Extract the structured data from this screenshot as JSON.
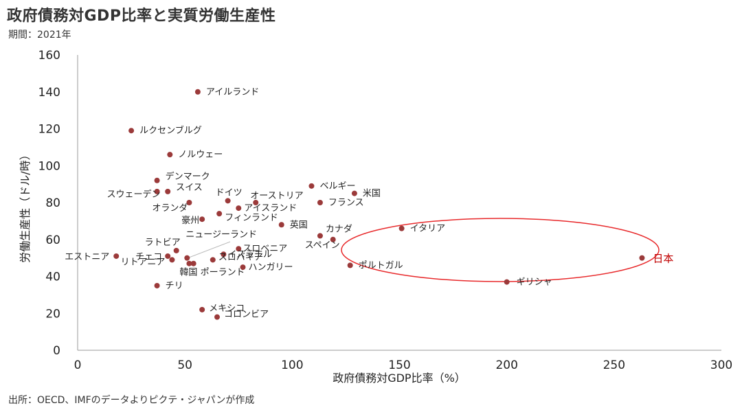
{
  "title": "政府債務対GDP比率と実質労働生産性",
  "subtitle": "期間：2021年",
  "source": "出所：OECD、IMFのデータよりピクテ・ジャパンが作成",
  "chart_data": {
    "type": "scatter",
    "xlabel": "政府債務対GDP比率（%）",
    "ylabel": "労働生産性（ドル/時）",
    "xlim": [
      0,
      300
    ],
    "ylim": [
      0,
      160
    ],
    "xticks": [
      0,
      50,
      100,
      150,
      200,
      250,
      300
    ],
    "yticks": [
      0,
      20,
      40,
      60,
      80,
      100,
      120,
      140,
      160
    ],
    "grid": false,
    "point_color": "#9b3a3a",
    "highlight_color": "#e8292b",
    "points": [
      {
        "label": "アイルランド",
        "x": 56,
        "y": 140
      },
      {
        "label": "ルクセンブルグ",
        "x": 25,
        "y": 119
      },
      {
        "label": "ノルウェー",
        "x": 43,
        "y": 106
      },
      {
        "label": "デンマーク",
        "x": 37,
        "y": 92
      },
      {
        "label": "スウェーデン",
        "x": 37,
        "y": 86
      },
      {
        "label": "スイス",
        "x": 42,
        "y": 86
      },
      {
        "label": "オランダ",
        "x": 52,
        "y": 80
      },
      {
        "label": "ドイツ",
        "x": 70,
        "y": 81
      },
      {
        "label": "オーストリア",
        "x": 83,
        "y": 80
      },
      {
        "label": "アイスランド",
        "x": 75,
        "y": 77
      },
      {
        "label": "フィンランド",
        "x": 66,
        "y": 74
      },
      {
        "label": "豪州",
        "x": 58,
        "y": 71
      },
      {
        "label": "ベルギー",
        "x": 109,
        "y": 89
      },
      {
        "label": "米国",
        "x": 129,
        "y": 85
      },
      {
        "label": "フランス",
        "x": 113,
        "y": 80
      },
      {
        "label": "英国",
        "x": 95,
        "y": 68
      },
      {
        "label": "カナダ",
        "x": 113,
        "y": 62
      },
      {
        "label": "スペイン",
        "x": 119,
        "y": 60
      },
      {
        "label": "イタリア",
        "x": 151,
        "y": 66
      },
      {
        "label": "ニュージーランド",
        "x": 51,
        "y": 50
      },
      {
        "label": "ラトビア",
        "x": 46,
        "y": 54
      },
      {
        "label": "チェコ",
        "x": 42,
        "y": 51
      },
      {
        "label": "エストニア",
        "x": 18,
        "y": 51
      },
      {
        "label": "リトアニア",
        "x": 44,
        "y": 49
      },
      {
        "label": "韓国",
        "x": 52,
        "y": 47
      },
      {
        "label": "ポーランド",
        "x": 54,
        "y": 47
      },
      {
        "label": "スロベニア",
        "x": 75,
        "y": 55
      },
      {
        "label": "イスラエル",
        "x": 68,
        "y": 52
      },
      {
        "label": "スロバキア",
        "x": 63,
        "y": 49
      },
      {
        "label": "ハンガリー",
        "x": 77,
        "y": 45
      },
      {
        "label": "ポルトガル",
        "x": 127,
        "y": 46
      },
      {
        "label": "ギリシャ",
        "x": 200,
        "y": 37
      },
      {
        "label": "日本",
        "x": 263,
        "y": 50,
        "highlight": true
      },
      {
        "label": "チリ",
        "x": 37,
        "y": 35
      },
      {
        "label": "メキシコ",
        "x": 58,
        "y": 22
      },
      {
        "label": "コロンビア",
        "x": 65,
        "y": 18
      }
    ]
  }
}
